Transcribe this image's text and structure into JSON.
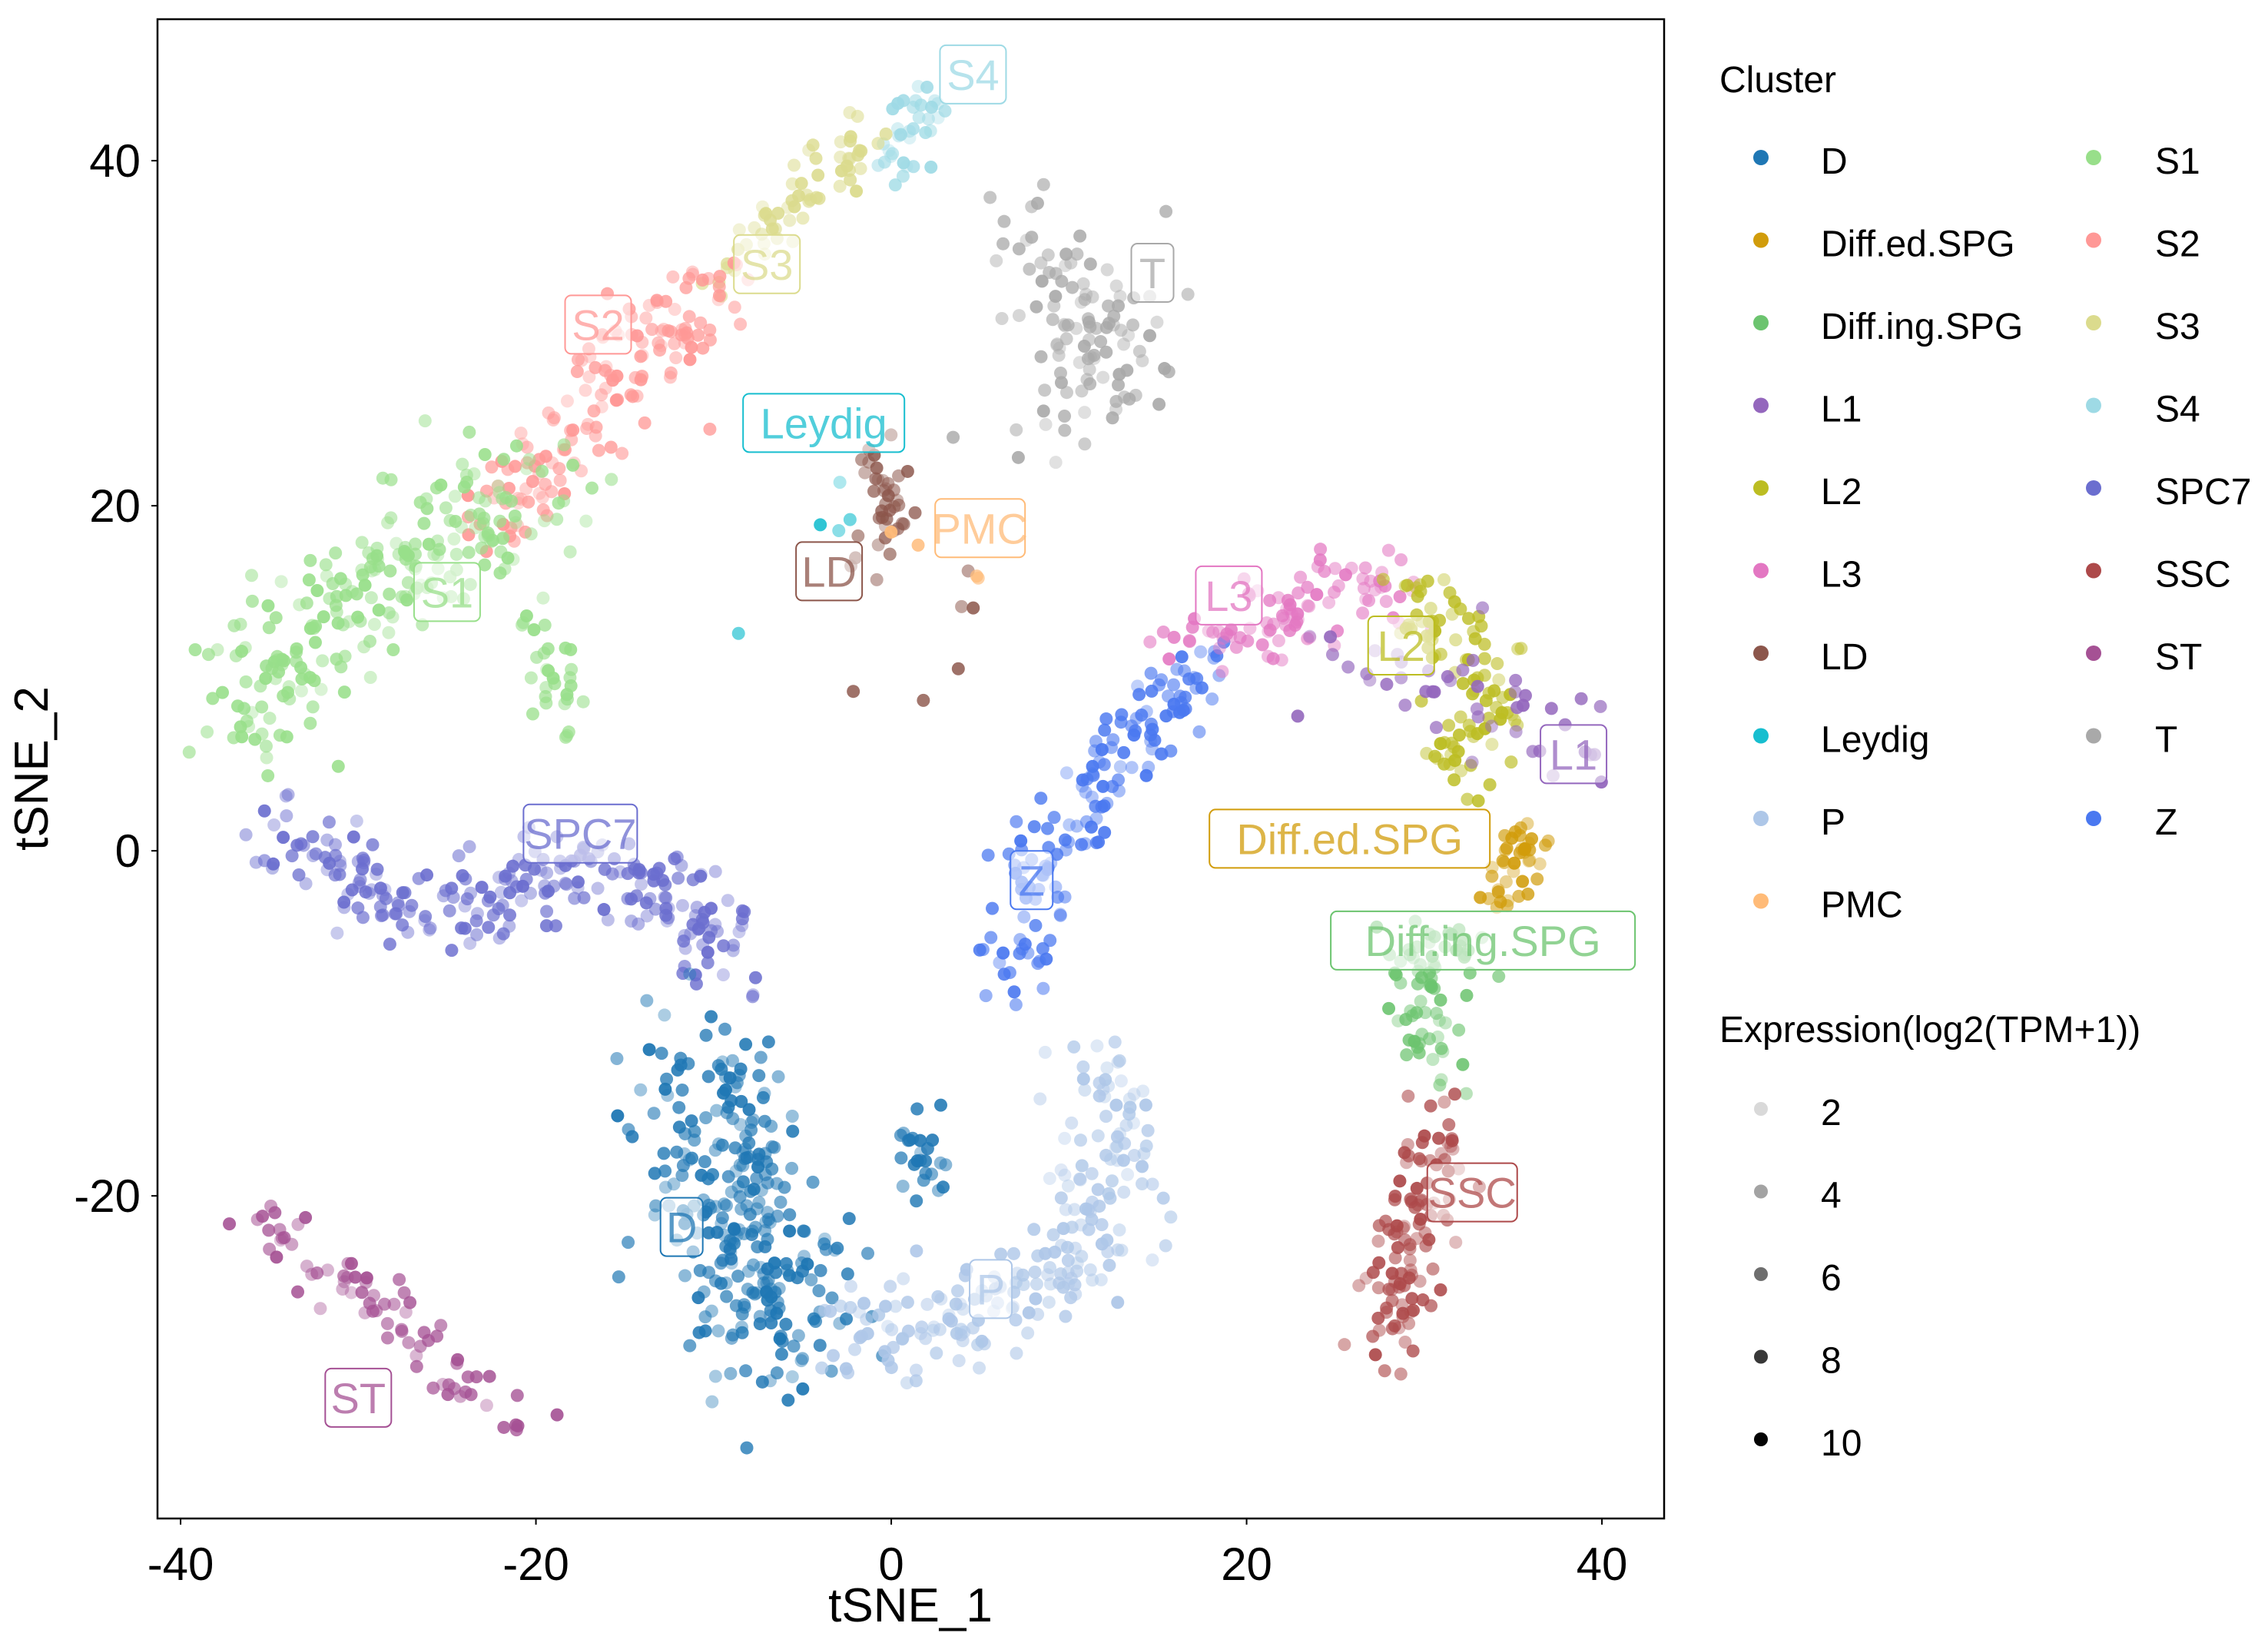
{
  "chart_data": {
    "type": "scatter",
    "title": "",
    "xlabel": "tSNE_1",
    "ylabel": "tSNE_2",
    "xlim": [
      -41.3,
      43.5
    ],
    "ylim": [
      -38.7,
      48.2
    ],
    "xticks": [
      -40,
      -20,
      0,
      20,
      40
    ],
    "yticks": [
      -20,
      0,
      20,
      40
    ],
    "grid": false,
    "legend_placement": "right",
    "cluster_legend": {
      "title": "Cluster",
      "entries": [
        {
          "name": "D",
          "color": "#1f77b4"
        },
        {
          "name": "Diff.ed.SPG",
          "color": "#d19c0b"
        },
        {
          "name": "Diff.ing.SPG",
          "color": "#6cc46f"
        },
        {
          "name": "L1",
          "color": "#9467bd"
        },
        {
          "name": "L2",
          "color": "#bcbd22"
        },
        {
          "name": "L3",
          "color": "#e377c2"
        },
        {
          "name": "LD",
          "color": "#8c564b"
        },
        {
          "name": "Leydig",
          "color": "#17becf"
        },
        {
          "name": "P",
          "color": "#aec7e8"
        },
        {
          "name": "PMC",
          "color": "#ffbb78"
        },
        {
          "name": "S1",
          "color": "#98df8a"
        },
        {
          "name": "S2",
          "color": "#ff9896"
        },
        {
          "name": "S3",
          "color": "#dbdb8d"
        },
        {
          "name": "S4",
          "color": "#9edae5"
        },
        {
          "name": "SPC7",
          "color": "#6b6ecf"
        },
        {
          "name": "SSC",
          "color": "#ad494a"
        },
        {
          "name": "ST",
          "color": "#a55194"
        },
        {
          "name": "T",
          "color": "#a9a9a9"
        },
        {
          "name": "Z",
          "color": "#4a78f0"
        }
      ]
    },
    "expression_legend": {
      "title": "Expression(log2(TPM+1))",
      "values": [
        "2",
        "4",
        "6",
        "8",
        "10"
      ]
    },
    "clusters": [
      {
        "name": "S4",
        "n": 35,
        "sd": 0.7,
        "path": [
          [
            0,
            40
          ],
          [
            1.5,
            42.5
          ],
          [
            2.5,
            44
          ]
        ]
      },
      {
        "name": "S3",
        "n": 60,
        "sd": 0.9,
        "path": [
          [
            -10,
            33
          ],
          [
            -6,
            37
          ],
          [
            -3,
            40
          ],
          [
            -1,
            41
          ]
        ]
      },
      {
        "name": "S2",
        "n": 150,
        "sd": 1.4,
        "path": [
          [
            -22,
            19
          ],
          [
            -18,
            24
          ],
          [
            -15,
            28
          ],
          [
            -12,
            31
          ],
          [
            -9,
            33
          ]
        ]
      },
      {
        "name": "S1",
        "n": 230,
        "sd": 2.0,
        "path": [
          [
            -36,
            7
          ],
          [
            -34,
            11
          ],
          [
            -31,
            14
          ],
          [
            -28,
            17
          ],
          [
            -24,
            19
          ],
          [
            -20,
            21
          ]
        ]
      },
      {
        "name": "S1",
        "n": 30,
        "sd": 0.8,
        "path": [
          [
            -20,
            14
          ],
          [
            -19,
            11
          ],
          [
            -19,
            8
          ]
        ]
      },
      {
        "name": "SPC7",
        "n": 240,
        "sd": 1.3,
        "path": [
          [
            -35,
            2
          ],
          [
            -31,
            -1
          ],
          [
            -27,
            -3
          ],
          [
            -22,
            -3
          ],
          [
            -18,
            -1
          ],
          [
            -14,
            -1
          ],
          [
            -11,
            -4
          ],
          [
            -9,
            -7
          ]
        ]
      },
      {
        "name": "D",
        "n": 280,
        "sd": 2.6,
        "path": [
          [
            -11,
            -12
          ],
          [
            -9,
            -18
          ],
          [
            -8,
            -24
          ],
          [
            -7,
            -28
          ],
          [
            -5,
            -26
          ]
        ]
      },
      {
        "name": "D",
        "n": 25,
        "sd": 0.8,
        "path": [
          [
            2,
            -16
          ],
          [
            2,
            -20
          ]
        ]
      },
      {
        "name": "P",
        "n": 210,
        "sd": 1.5,
        "path": [
          [
            -3,
            -28
          ],
          [
            2,
            -28
          ],
          [
            6,
            -26
          ],
          [
            10,
            -24
          ],
          [
            12,
            -20
          ],
          [
            13,
            -16
          ],
          [
            12,
            -12
          ]
        ]
      },
      {
        "name": "Z",
        "n": 150,
        "sd": 1.2,
        "path": [
          [
            7,
            -8
          ],
          [
            8,
            -4
          ],
          [
            9,
            0
          ],
          [
            11,
            3
          ],
          [
            13,
            6
          ],
          [
            16,
            9
          ],
          [
            19,
            11
          ]
        ]
      },
      {
        "name": "L3",
        "n": 90,
        "sd": 1.2,
        "path": [
          [
            17,
            12
          ],
          [
            21,
            13
          ],
          [
            24,
            15
          ],
          [
            27,
            16
          ],
          [
            29,
            14
          ]
        ]
      },
      {
        "name": "L2",
        "n": 95,
        "sd": 1.1,
        "path": [
          [
            29,
            16
          ],
          [
            31,
            13
          ],
          [
            33,
            11
          ],
          [
            34,
            8
          ],
          [
            32,
            7
          ],
          [
            31,
            4
          ]
        ]
      },
      {
        "name": "L1",
        "n": 45,
        "sd": 1.3,
        "path": [
          [
            24,
            10
          ],
          [
            30,
            10
          ],
          [
            36,
            7
          ],
          [
            38,
            6
          ],
          [
            39,
            4
          ]
        ]
      },
      {
        "name": "Diff.ed.SPG",
        "n": 40,
        "sd": 0.8,
        "path": [
          [
            36,
            1
          ],
          [
            35,
            -1
          ],
          [
            34,
            -3
          ]
        ]
      },
      {
        "name": "Diff.ing.SPG",
        "n": 70,
        "sd": 1.2,
        "path": [
          [
            31,
            -5
          ],
          [
            30,
            -8
          ],
          [
            31,
            -11
          ],
          [
            31,
            -13
          ]
        ]
      },
      {
        "name": "SSC",
        "n": 110,
        "sd": 1.0,
        "path": [
          [
            31,
            -15
          ],
          [
            30,
            -19
          ],
          [
            29,
            -23
          ],
          [
            28,
            -27
          ],
          [
            28,
            -29
          ]
        ]
      },
      {
        "name": "ST",
        "n": 75,
        "sd": 0.9,
        "path": [
          [
            -36,
            -21
          ],
          [
            -32,
            -24
          ],
          [
            -28,
            -27
          ],
          [
            -25,
            -30
          ],
          [
            -21,
            -33
          ],
          [
            -19,
            -33
          ]
        ]
      },
      {
        "name": "T",
        "n": 110,
        "sd": 2.2,
        "path": [
          [
            9,
            35
          ],
          [
            11,
            31
          ],
          [
            13,
            28
          ],
          [
            10,
            26
          ]
        ]
      },
      {
        "name": "LD",
        "n": 40,
        "sd": 0.7,
        "path": [
          [
            -1,
            23
          ],
          [
            0,
            20
          ],
          [
            -1,
            17
          ]
        ]
      },
      {
        "name": "LD",
        "n": 6,
        "sd": 0.6,
        "path": [
          [
            5,
            17
          ],
          [
            3,
            9
          ],
          [
            -4,
            9
          ]
        ]
      },
      {
        "name": "Leydig",
        "n": 5,
        "sd": 0.6,
        "path": [
          [
            -8,
            13
          ],
          [
            -1,
            22
          ]
        ]
      },
      {
        "name": "PMC",
        "n": 4,
        "sd": 0.5,
        "path": [
          [
            6,
            15
          ],
          [
            -2,
            21
          ]
        ]
      }
    ],
    "annotations": [
      {
        "text": "S4",
        "cluster": "S4",
        "x": 4.6,
        "y": 45.0
      },
      {
        "text": "S3",
        "cluster": "S3",
        "x": -7.0,
        "y": 34.0
      },
      {
        "text": "S2",
        "cluster": "S2",
        "x": -16.5,
        "y": 30.5
      },
      {
        "text": "Leydig",
        "cluster": "Leydig",
        "x": -3.8,
        "y": 24.8
      },
      {
        "text": "PMC",
        "cluster": "PMC",
        "x": 5.0,
        "y": 18.7
      },
      {
        "text": "LD",
        "cluster": "LD",
        "x": -3.5,
        "y": 16.2
      },
      {
        "text": "S1",
        "cluster": "S1",
        "x": -25.0,
        "y": 15.0
      },
      {
        "text": "T",
        "cluster": "T",
        "x": 14.7,
        "y": 33.5
      },
      {
        "text": "L3",
        "cluster": "L3",
        "x": 19.0,
        "y": 14.8
      },
      {
        "text": "L2",
        "cluster": "L2",
        "x": 28.7,
        "y": 11.9
      },
      {
        "text": "L1",
        "cluster": "L1",
        "x": 38.4,
        "y": 5.6
      },
      {
        "text": "SPC7",
        "cluster": "SPC7",
        "x": -17.5,
        "y": 1.0
      },
      {
        "text": "Diff.ed.SPG",
        "cluster": "Diff.ed.SPG",
        "x": 25.8,
        "y": 0.7
      },
      {
        "text": "Z",
        "cluster": "Z",
        "x": 7.9,
        "y": -1.7
      },
      {
        "text": "Diff.ing.SPG",
        "cluster": "Diff.ing.SPG",
        "x": 33.3,
        "y": -5.2
      },
      {
        "text": "SSC",
        "cluster": "SSC",
        "x": 32.7,
        "y": -19.8
      },
      {
        "text": "D",
        "cluster": "D",
        "x": -11.8,
        "y": -21.8
      },
      {
        "text": "P",
        "cluster": "P",
        "x": 5.6,
        "y": -25.4
      },
      {
        "text": "ST",
        "cluster": "ST",
        "x": -30.0,
        "y": -31.7
      }
    ]
  }
}
